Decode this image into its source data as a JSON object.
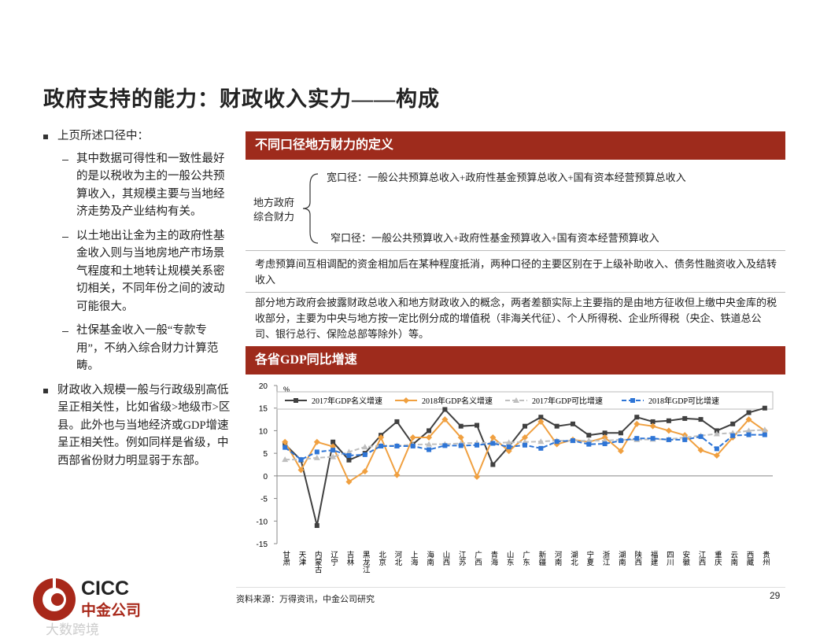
{
  "header": {
    "title": "政府支持的能力：财政收入实力——构成"
  },
  "bullets": [
    {
      "text": "上页所述口径中：",
      "subs": [
        "其中数据可得性和一致性最好的是以税收为主的一般公共预算收入，其规模主要与当地经济走势及产业结构有关。",
        "以土地出让金为主的政府性基金收入则与当地房地产市场景气程度和土地转让规模关系密切相关，不同年份之间的波动可能很大。",
        "社保基金收入一般“专款专用”，不纳入综合财力计算范畴。"
      ]
    },
    {
      "text": "财政收入规模一般与行政级别高低呈正相关性，比如省级>地级市>区县。此外也与当地经济或GDP增速呈正相关性。例如同样是省级，中西部省份财力明显弱于东部。"
    }
  ],
  "panel1": {
    "title": "不同口径地方财力的定义",
    "label": [
      "地方政府",
      "综合财力"
    ],
    "wide": "宽口径：一般公共预算总收入+政府性基金预算总收入+国有资本经营预算总收入",
    "narrow": "窄口径：一般公共预算收入+政府性基金预算收入+国有资本经营预算收入",
    "notes": [
      "考虑预算间互相调配的资金相加后在某种程度抵消，两种口径的主要区别在于上级补助收入、债务性融资收入及结转收入",
      "部分地方政府会披露财政总收入和地方财政收入的概念，两者差额实际上主要指的是由地方征收但上缴中央金库的税收部分，主要为中央与地方按一定比例分成的增值税（非海关代征）、个人所得税、企业所得税（央企、铁道总公司、银行总行、保险总部等除外）等。"
    ]
  },
  "panel2": {
    "title": "各省GDP同比增速"
  },
  "chart_data": {
    "type": "line",
    "unit": "%",
    "categories": [
      "甘肃",
      "天津",
      "内蒙古",
      "辽宁",
      "吉林",
      "黑龙江",
      "北京",
      "河北",
      "上海",
      "海南",
      "山西",
      "江苏",
      "广西",
      "青海",
      "山东",
      "广东",
      "新疆",
      "河南",
      "湖北",
      "宁夏",
      "浙江",
      "湖南",
      "陕西",
      "福建",
      "四川",
      "安徽",
      "江西",
      "重庆",
      "云南",
      "西藏",
      "贵州"
    ],
    "series": [
      {
        "name": "2017年GDP名义增速",
        "color": "#404040",
        "marker": "square",
        "dashed": false,
        "values": [
          7,
          3.5,
          -11,
          7.5,
          3.5,
          5,
          9,
          12,
          7,
          10,
          14.7,
          11,
          11.2,
          2.5,
          6.5,
          11,
          13,
          11,
          11.5,
          9,
          9.5,
          9.5,
          13,
          12,
          12.2,
          12.7,
          12.5,
          10,
          11.5,
          14,
          15
        ]
      },
      {
        "name": "2018年GDP名义增速",
        "color": "#f0a040",
        "marker": "diamond",
        "dashed": false,
        "values": [
          7.5,
          1.3,
          7.5,
          6.5,
          -1.3,
          1,
          8.5,
          0.2,
          8.5,
          8.5,
          12.5,
          8.5,
          -0.2,
          8.5,
          5.5,
          8.5,
          12,
          7,
          8,
          7.5,
          8.5,
          5.5,
          11.5,
          11,
          10,
          9,
          5.7,
          4.5,
          8.5,
          12.5,
          10
        ]
      },
      {
        "name": "2017年GDP可比增速",
        "color": "#bfbfbf",
        "marker": "triangle",
        "dashed": true,
        "values": [
          3.6,
          3.6,
          4,
          4.2,
          5.3,
          6.4,
          6.7,
          6.7,
          6.9,
          7,
          7,
          7.2,
          7.3,
          7.3,
          7.4,
          7.5,
          7.6,
          7.8,
          7.8,
          7.8,
          7.8,
          8,
          8,
          8.1,
          8.1,
          8.5,
          8.9,
          9.3,
          9.5,
          10,
          10.2
        ]
      },
      {
        "name": "2018年GDP可比增速",
        "color": "#2e75d6",
        "marker": "square",
        "dashed": true,
        "values": [
          6.3,
          3.6,
          5.3,
          5.7,
          4.5,
          4.7,
          6.6,
          6.6,
          6.6,
          5.8,
          6.7,
          6.7,
          6.8,
          7.2,
          6.4,
          6.8,
          6.1,
          7.6,
          7.8,
          7,
          7.1,
          7.8,
          8.3,
          8.3,
          8,
          8,
          8.7,
          6,
          8.9,
          9.1,
          9.1
        ]
      }
    ],
    "ylim": [
      -15,
      20
    ],
    "yticks": [
      -15,
      -10,
      -5,
      0,
      5,
      10,
      15,
      20
    ]
  },
  "source": "资料来源：万得资讯，中金公司研究",
  "page_number": "29",
  "logo": {
    "en": "CICC",
    "zh": "中金公司"
  },
  "watermark": "大数跨境"
}
